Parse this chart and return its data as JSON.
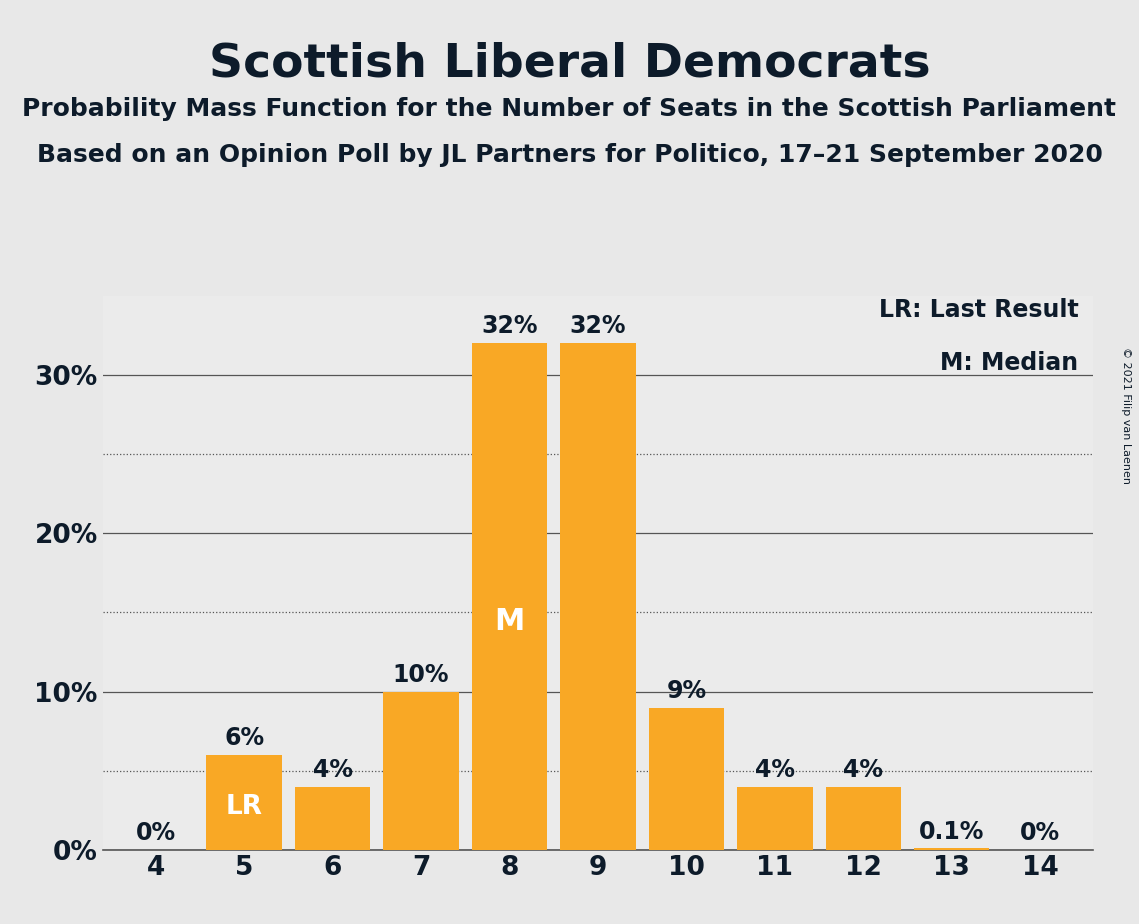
{
  "title": "Scottish Liberal Democrats",
  "subtitle1": "Probability Mass Function for the Number of Seats in the Scottish Parliament",
  "subtitle2": "Based on an Opinion Poll by JL Partners for Politico, 17–21 September 2020",
  "copyright": "© 2021 Filip van Laenen",
  "categories": [
    4,
    5,
    6,
    7,
    8,
    9,
    10,
    11,
    12,
    13,
    14
  ],
  "values": [
    0,
    6,
    4,
    10,
    32,
    32,
    9,
    4,
    4,
    0.1,
    0
  ],
  "labels": [
    "0%",
    "6%",
    "4%",
    "10%",
    "32%",
    "32%",
    "9%",
    "4%",
    "4%",
    "0.1%",
    "0%"
  ],
  "bar_color": "#F9A825",
  "lr_bar": 5,
  "median_bar": 8,
  "background_color": "#E8E8E8",
  "plot_bg_color": "#EBEBEB",
  "title_color": "#0D1B2A",
  "grid_color": "#555555",
  "solid_yticks": [
    0,
    10,
    20,
    30
  ],
  "dotted_yticks": [
    5,
    15,
    25
  ],
  "ylim": [
    0,
    35
  ],
  "ytick_labels": [
    "0%",
    "10%",
    "20%",
    "30%"
  ],
  "legend_lr": "LR: Last Result",
  "legend_m": "M: Median",
  "title_fontsize": 34,
  "subtitle_fontsize": 18,
  "axis_fontsize": 19,
  "bar_label_fontsize": 17,
  "legend_fontsize": 17,
  "copyright_fontsize": 8
}
